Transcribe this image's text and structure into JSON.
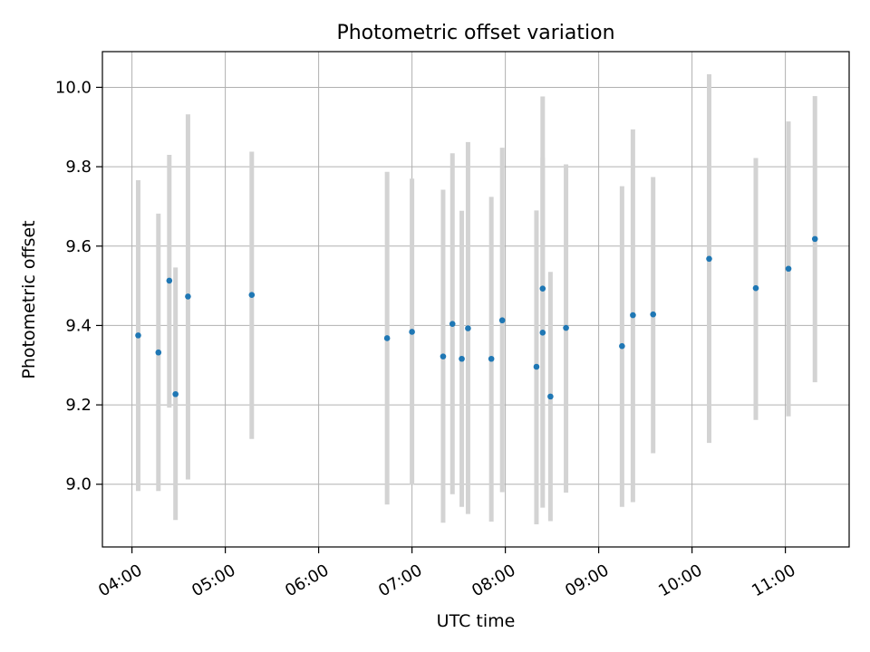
{
  "chart_data": {
    "type": "scatter",
    "title": "Photometric offset variation",
    "xlabel": "UTC time",
    "ylabel": "Photometric offset",
    "grid": true,
    "xlim": [
      "03:41",
      "11:41"
    ],
    "ylim": [
      8.842,
      10.09
    ],
    "x_ticks": [
      "04:00",
      "05:00",
      "06:00",
      "07:00",
      "08:00",
      "09:00",
      "10:00",
      "11:00"
    ],
    "y_ticks": [
      "9.0",
      "9.2",
      "9.4",
      "9.6",
      "9.8",
      "10.0"
    ],
    "colors": {
      "points": "#1f77b4",
      "errorbars": "#d3d3d3",
      "grid": "#b0b0b0"
    },
    "series": [
      {
        "points": [
          {
            "x": "04:04",
            "y": 9.375,
            "lo": 8.983,
            "hi": 9.766
          },
          {
            "x": "04:17",
            "y": 9.332,
            "lo": 8.983,
            "hi": 9.682
          },
          {
            "x": "04:24",
            "y": 9.513,
            "lo": 9.193,
            "hi": 9.83
          },
          {
            "x": "04:28",
            "y": 9.227,
            "lo": 8.91,
            "hi": 9.546
          },
          {
            "x": "04:36",
            "y": 9.473,
            "lo": 9.012,
            "hi": 9.932
          },
          {
            "x": "05:17",
            "y": 9.477,
            "lo": 9.114,
            "hi": 9.838
          },
          {
            "x": "06:44",
            "y": 9.368,
            "lo": 8.949,
            "hi": 9.787
          },
          {
            "x": "07:00",
            "y": 9.384,
            "lo": 8.999,
            "hi": 9.77
          },
          {
            "x": "07:20",
            "y": 9.322,
            "lo": 8.903,
            "hi": 9.742
          },
          {
            "x": "07:26",
            "y": 9.404,
            "lo": 8.975,
            "hi": 9.834
          },
          {
            "x": "07:32",
            "y": 9.316,
            "lo": 8.943,
            "hi": 9.689
          },
          {
            "x": "07:36",
            "y": 9.393,
            "lo": 8.925,
            "hi": 9.862
          },
          {
            "x": "07:51",
            "y": 9.316,
            "lo": 8.906,
            "hi": 9.724
          },
          {
            "x": "07:58",
            "y": 9.413,
            "lo": 8.98,
            "hi": 9.848
          },
          {
            "x": "08:20",
            "y": 9.296,
            "lo": 8.899,
            "hi": 9.69
          },
          {
            "x": "08:24",
            "y": 9.382,
            "lo": 8.941,
            "hi": 9.823
          },
          {
            "x": "08:24",
            "y": 9.493,
            "lo": 9.01,
            "hi": 9.977
          },
          {
            "x": "08:29",
            "y": 9.221,
            "lo": 8.907,
            "hi": 9.535
          },
          {
            "x": "08:39",
            "y": 9.394,
            "lo": 8.979,
            "hi": 9.806
          },
          {
            "x": "09:15",
            "y": 9.348,
            "lo": 8.943,
            "hi": 9.751
          },
          {
            "x": "09:22",
            "y": 9.426,
            "lo": 8.955,
            "hi": 9.894
          },
          {
            "x": "09:35",
            "y": 9.428,
            "lo": 9.078,
            "hi": 9.774
          },
          {
            "x": "10:11",
            "y": 9.568,
            "lo": 9.104,
            "hi": 10.033
          },
          {
            "x": "10:41",
            "y": 9.494,
            "lo": 9.162,
            "hi": 9.822
          },
          {
            "x": "11:02",
            "y": 9.543,
            "lo": 9.171,
            "hi": 9.914
          },
          {
            "x": "11:19",
            "y": 9.618,
            "lo": 9.257,
            "hi": 9.978
          }
        ]
      }
    ]
  }
}
